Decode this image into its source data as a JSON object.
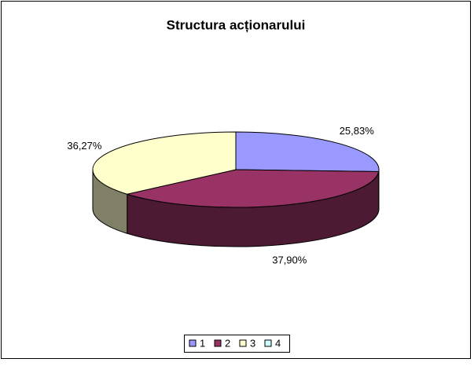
{
  "chart_data": {
    "type": "pie3d",
    "title": "Structura acționarului",
    "categories": [
      "1",
      "2",
      "3",
      "4"
    ],
    "values": [
      25.83,
      37.9,
      36.27,
      0
    ],
    "value_labels": [
      "25,83%",
      "37,90%",
      "36,27%",
      null
    ],
    "colors": [
      "#9999ff",
      "#993366",
      "#ffffcc",
      "#ccffff"
    ],
    "legend": "bottom"
  }
}
